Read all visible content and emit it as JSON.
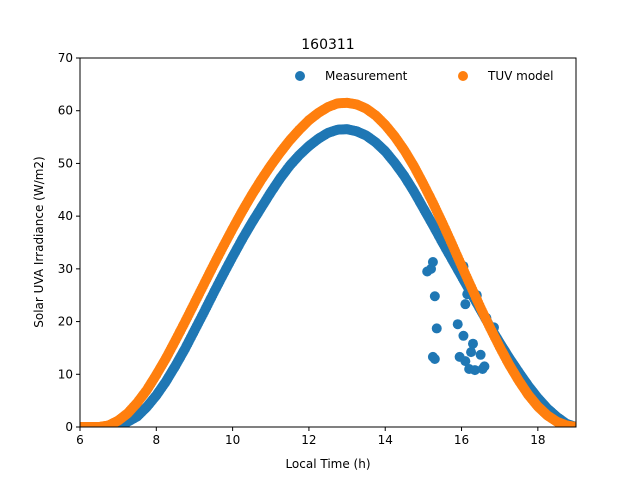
{
  "chart_data": {
    "type": "scatter",
    "title": "160311",
    "xlabel": "Local Time (h)",
    "ylabel": "Solar UVA Irradiance (W/m2)",
    "xlim": [
      6,
      19
    ],
    "ylim": [
      0,
      70
    ],
    "xticks": [
      6,
      8,
      10,
      12,
      14,
      16,
      18
    ],
    "yticks": [
      0,
      10,
      20,
      30,
      40,
      50,
      60,
      70
    ],
    "grid": false,
    "legend_position": "top-right",
    "series": [
      {
        "name": "Measurement",
        "color": "#1f77b4",
        "points": [
          [
            6.0,
            0.0
          ],
          [
            6.25,
            0.0
          ],
          [
            6.5,
            0.0
          ],
          [
            6.75,
            0.0
          ],
          [
            7.0,
            0.3
          ],
          [
            7.25,
            1.0
          ],
          [
            7.5,
            2.0
          ],
          [
            7.75,
            3.8
          ],
          [
            8.0,
            6.0
          ],
          [
            8.25,
            8.6
          ],
          [
            8.5,
            11.6
          ],
          [
            8.75,
            14.8
          ],
          [
            9.0,
            18.3
          ],
          [
            9.25,
            21.8
          ],
          [
            9.5,
            25.4
          ],
          [
            9.75,
            28.9
          ],
          [
            10.0,
            32.3
          ],
          [
            10.25,
            35.6
          ],
          [
            10.5,
            38.7
          ],
          [
            10.75,
            41.6
          ],
          [
            11.0,
            44.5
          ],
          [
            11.25,
            47.2
          ],
          [
            11.5,
            49.6
          ],
          [
            11.75,
            51.6
          ],
          [
            12.0,
            53.3
          ],
          [
            12.25,
            54.7
          ],
          [
            12.5,
            55.8
          ],
          [
            12.75,
            56.4
          ],
          [
            13.0,
            56.5
          ],
          [
            13.25,
            56.1
          ],
          [
            13.5,
            55.3
          ],
          [
            13.75,
            54.0
          ],
          [
            14.0,
            52.3
          ],
          [
            14.25,
            50.1
          ],
          [
            14.5,
            47.6
          ],
          [
            14.75,
            44.7
          ],
          [
            15.0,
            41.5
          ],
          [
            15.25,
            38.3
          ],
          [
            15.5,
            35.0
          ],
          [
            15.75,
            31.8
          ],
          [
            16.0,
            28.6
          ],
          [
            16.25,
            25.4
          ],
          [
            16.5,
            22.2
          ],
          [
            16.75,
            19.0
          ],
          [
            17.0,
            16.0
          ],
          [
            17.25,
            13.1
          ],
          [
            17.5,
            10.4
          ],
          [
            17.75,
            7.8
          ],
          [
            18.0,
            5.5
          ],
          [
            18.25,
            3.5
          ],
          [
            18.5,
            1.9
          ],
          [
            18.75,
            0.6
          ],
          [
            19.0,
            0.0
          ],
          [
            15.1,
            29.5
          ],
          [
            15.2,
            30.0
          ],
          [
            15.25,
            31.3
          ],
          [
            15.3,
            24.8
          ],
          [
            15.25,
            13.3
          ],
          [
            15.3,
            12.9
          ],
          [
            15.35,
            18.7
          ],
          [
            15.9,
            19.5
          ],
          [
            15.95,
            13.3
          ],
          [
            16.0,
            29.5
          ],
          [
            16.05,
            17.3
          ],
          [
            16.05,
            30.5
          ],
          [
            16.1,
            23.3
          ],
          [
            16.1,
            12.5
          ],
          [
            16.15,
            25.2
          ],
          [
            16.2,
            25.8
          ],
          [
            16.2,
            11.0
          ],
          [
            16.25,
            14.2
          ],
          [
            16.3,
            15.8
          ],
          [
            16.35,
            10.8
          ],
          [
            16.4,
            25.0
          ],
          [
            16.5,
            13.7
          ],
          [
            16.55,
            11.0
          ],
          [
            16.6,
            11.5
          ],
          [
            16.65,
            20.7
          ],
          [
            16.85,
            18.9
          ]
        ]
      },
      {
        "name": "TUV model",
        "color": "#ff7f0e",
        "points": [
          [
            6.0,
            0.0
          ],
          [
            6.25,
            0.0
          ],
          [
            6.5,
            0.0
          ],
          [
            6.75,
            0.3
          ],
          [
            7.0,
            1.2
          ],
          [
            7.25,
            2.6
          ],
          [
            7.5,
            4.6
          ],
          [
            7.75,
            7.0
          ],
          [
            8.0,
            9.9
          ],
          [
            8.25,
            13.0
          ],
          [
            8.5,
            16.4
          ],
          [
            8.75,
            19.9
          ],
          [
            9.0,
            23.5
          ],
          [
            9.25,
            27.1
          ],
          [
            9.5,
            30.7
          ],
          [
            9.75,
            34.2
          ],
          [
            10.0,
            37.6
          ],
          [
            10.25,
            40.9
          ],
          [
            10.5,
            44.0
          ],
          [
            10.75,
            46.9
          ],
          [
            11.0,
            49.6
          ],
          [
            11.25,
            52.1
          ],
          [
            11.5,
            54.4
          ],
          [
            11.75,
            56.4
          ],
          [
            12.0,
            58.2
          ],
          [
            12.25,
            59.6
          ],
          [
            12.5,
            60.7
          ],
          [
            12.75,
            61.4
          ],
          [
            13.0,
            61.5
          ],
          [
            13.25,
            61.2
          ],
          [
            13.5,
            60.4
          ],
          [
            13.75,
            59.1
          ],
          [
            14.0,
            57.3
          ],
          [
            14.25,
            55.1
          ],
          [
            14.5,
            52.5
          ],
          [
            14.75,
            49.5
          ],
          [
            15.0,
            46.1
          ],
          [
            15.25,
            42.5
          ],
          [
            15.5,
            38.7
          ],
          [
            15.75,
            34.7
          ],
          [
            16.0,
            30.6
          ],
          [
            16.25,
            26.6
          ],
          [
            16.5,
            22.6
          ],
          [
            16.75,
            18.8
          ],
          [
            17.0,
            15.2
          ],
          [
            17.25,
            11.8
          ],
          [
            17.5,
            8.8
          ],
          [
            17.75,
            6.1
          ],
          [
            18.0,
            3.9
          ],
          [
            18.25,
            2.2
          ],
          [
            18.5,
            1.0
          ],
          [
            18.75,
            0.3
          ],
          [
            19.0,
            0.0
          ]
        ]
      }
    ]
  }
}
